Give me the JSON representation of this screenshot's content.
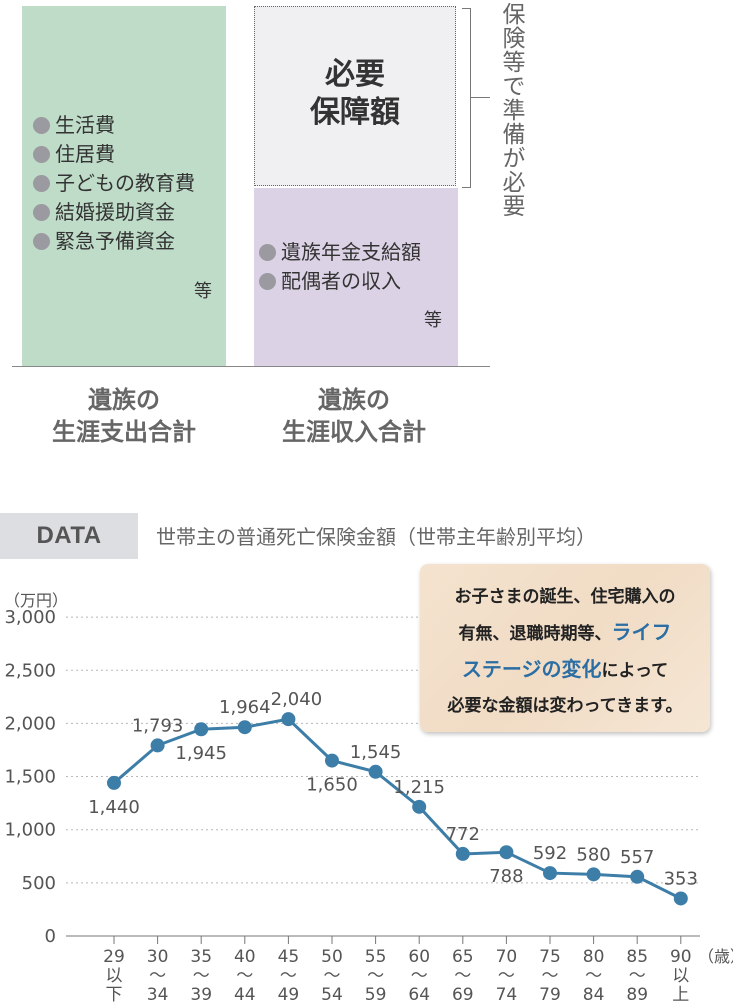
{
  "diagram": {
    "expense_items": [
      "生活費",
      "住居費",
      "子どもの教育費",
      "結婚援助資金",
      "緊急予備資金"
    ],
    "expense_etc": "等",
    "need_title_lines": [
      "必要",
      "保障額"
    ],
    "income_items": [
      "遺族年金支給額",
      "配偶者の収入"
    ],
    "income_etc": "等",
    "vertical_note": "保険等で準備が必要",
    "expense_label_lines": [
      "遺族の",
      "生涯支出合計"
    ],
    "income_label_lines": [
      "遺族の",
      "生涯収入合計"
    ]
  },
  "data_header": {
    "badge": "DATA",
    "title": "世帯主の普通死亡保険金額（世帯主年齢別平均）"
  },
  "note": {
    "line1": "お子さまの誕生、住宅購入の",
    "line2": "有無、退職時期等、",
    "line2_highlight": "ライフ",
    "line3_highlight": "ステージの変化",
    "line3_rest": "によって",
    "line4": "必要な金額は変わってきます。"
  },
  "colors": {
    "line": "#3d7ea8",
    "expense_box": "#bfdcc9",
    "income_box": "#dcd2e6",
    "need_box": "#f0f0f2",
    "highlight": "#2b6ea3"
  },
  "chart_data": {
    "type": "line",
    "title": "",
    "ylabel": "（万円）",
    "xlabel": "（歳）",
    "ylim": [
      0,
      3000
    ],
    "yticks": [
      "0",
      "500",
      "1,000",
      "1,500",
      "2,000",
      "2,500",
      "3,000"
    ],
    "grid": true,
    "categories": [
      [
        "29",
        "以",
        "下"
      ],
      [
        "30",
        "〜",
        "34"
      ],
      [
        "35",
        "〜",
        "39"
      ],
      [
        "40",
        "〜",
        "44"
      ],
      [
        "45",
        "〜",
        "49"
      ],
      [
        "50",
        "〜",
        "54"
      ],
      [
        "55",
        "〜",
        "59"
      ],
      [
        "60",
        "〜",
        "64"
      ],
      [
        "65",
        "〜",
        "69"
      ],
      [
        "70",
        "〜",
        "74"
      ],
      [
        "75",
        "〜",
        "79"
      ],
      [
        "80",
        "〜",
        "84"
      ],
      [
        "85",
        "〜",
        "89"
      ],
      [
        "90",
        "以",
        "上"
      ]
    ],
    "values": [
      1440,
      1793,
      1945,
      1964,
      2040,
      1650,
      1545,
      1215,
      772,
      788,
      592,
      580,
      557,
      353
    ],
    "value_labels": [
      "1,440",
      "1,793",
      "1,945",
      "1,964",
      "2,040",
      "1,650",
      "1,545",
      "1,215",
      "772",
      "788",
      "592",
      "580",
      "557",
      "353"
    ]
  }
}
